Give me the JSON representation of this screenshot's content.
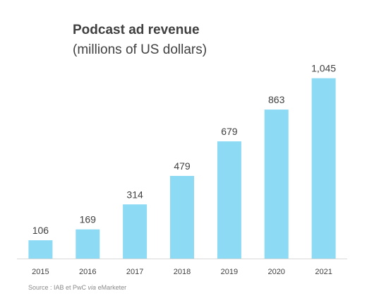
{
  "chart_data": {
    "type": "bar",
    "title": "Podcast ad revenue",
    "subtitle": "(millions of US dollars)",
    "categories": [
      "2015",
      "2016",
      "2017",
      "2018",
      "2019",
      "2020",
      "2021"
    ],
    "values": [
      106,
      169,
      314,
      479,
      679,
      863,
      1045
    ],
    "value_labels": [
      "106",
      "169",
      "314",
      "479",
      "679",
      "863",
      "1,045"
    ],
    "xlabel": "",
    "ylabel": "",
    "ylim": [
      0,
      1150
    ],
    "grid": false,
    "bar_color": "#8ddaf5"
  },
  "source": {
    "prefix": "Source : IAB et PwC ",
    "via": "via",
    "suffix": " eMarketer"
  }
}
